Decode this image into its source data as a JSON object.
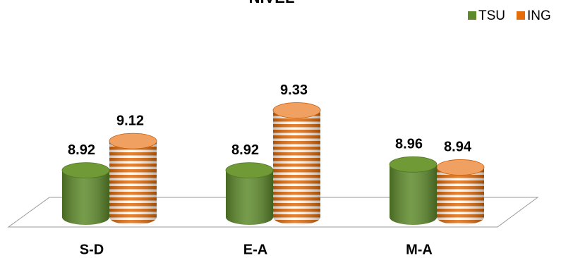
{
  "chart_data": {
    "type": "bar",
    "title": "NIVEL",
    "categories": [
      "S-D",
      "E-A",
      "M-A"
    ],
    "series": [
      {
        "name": "TSU",
        "color": "#5e8a2b",
        "values": [
          8.92,
          8.92,
          8.96
        ]
      },
      {
        "name": "ING",
        "color": "#e46c0a",
        "values": [
          9.12,
          9.33,
          8.94
        ]
      }
    ],
    "ylim": [
      8.6,
      9.4
    ],
    "legend": "top-right"
  }
}
